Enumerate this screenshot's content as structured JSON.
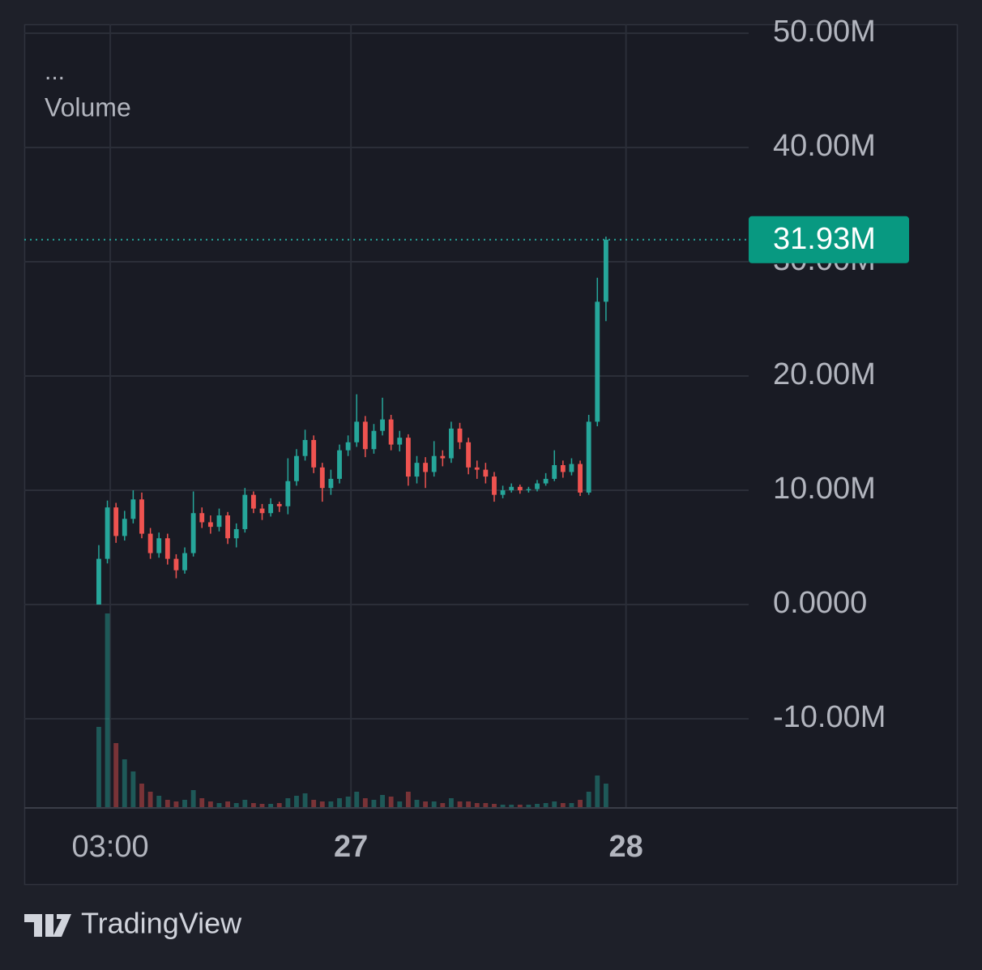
{
  "chart_data": {
    "type": "candlestick",
    "legend_dots": "...",
    "series_name": "Volume",
    "brand": "TradingView",
    "up_color": "#26a69a",
    "down_color": "#ef5350",
    "grid": true,
    "xlim": [
      -4.5,
      58.7
    ],
    "xticks": [
      {
        "value": 3,
        "label": "03:00",
        "bold": false
      },
      {
        "value": 24,
        "label": "27",
        "bold": true
      },
      {
        "value": 48,
        "label": "28",
        "bold": true
      }
    ],
    "ylim": [
      -17.8,
      50.78
    ],
    "yticks": [
      {
        "value": -10,
        "label": "-10.00M"
      },
      {
        "value": 0,
        "label": "0.0000"
      },
      {
        "value": 10,
        "label": "10.00M"
      },
      {
        "value": 20,
        "label": "20.00M"
      },
      {
        "value": 30,
        "label": "30.00M"
      },
      {
        "value": 40,
        "label": "40.00M"
      },
      {
        "value": 50,
        "label": "50.00M"
      }
    ],
    "last_price": {
      "value": 31.93,
      "label": "31.93M"
    },
    "candles": {
      "x": [
        2,
        2.75,
        3.5,
        4.25,
        5,
        5.75,
        6.5,
        7.25,
        8,
        8.75,
        9.5,
        10.25,
        11,
        11.75,
        12.5,
        13.25,
        14,
        14.75,
        15.5,
        16.25,
        17,
        17.75,
        18.5,
        19.25,
        20,
        20.75,
        21.5,
        22.25,
        23,
        23.75,
        24.5,
        25.25,
        26,
        26.75,
        27.5,
        28.25,
        29,
        29.75,
        30.5,
        31.25,
        32,
        32.75,
        33.5,
        34.25,
        35,
        35.75,
        36.5,
        37.25,
        38,
        38.75,
        39.5,
        40.25,
        41,
        41.75,
        42.5,
        43.25,
        44,
        44.75,
        45.5,
        46.25
      ],
      "open": [
        0,
        4.0,
        8.5,
        6.0,
        7.5,
        9.2,
        6.2,
        4.5,
        5.8,
        4.0,
        3.0,
        4.5,
        8.0,
        7.2,
        6.8,
        7.8,
        5.8,
        6.6,
        9.6,
        8.4,
        8.0,
        8.8,
        8.6,
        10.8,
        13.0,
        14.4,
        12.0,
        10.2,
        11.0,
        13.5,
        14.2,
        16.0,
        13.6,
        15.2,
        16.2,
        14.0,
        14.6,
        11.2,
        12.4,
        11.6,
        13.0,
        12.8,
        15.4,
        14.2,
        12.0,
        11.8,
        11.2,
        9.6,
        10.0,
        10.3,
        10.0,
        10.1,
        10.6,
        11.0,
        12.2,
        11.6,
        12.3,
        9.8,
        16.0,
        26.5
      ],
      "high": [
        5.2,
        9.1,
        8.9,
        8.2,
        10.0,
        9.8,
        6.7,
        6.3,
        6.2,
        4.4,
        5.0,
        9.9,
        8.5,
        7.8,
        8.4,
        8.1,
        7.1,
        10.2,
        9.9,
        8.8,
        9.3,
        9.0,
        12.8,
        13.6,
        15.3,
        14.8,
        12.4,
        11.8,
        14.0,
        14.8,
        18.4,
        16.5,
        15.8,
        18.1,
        16.6,
        15.2,
        14.9,
        13.0,
        12.9,
        14.3,
        13.5,
        16.0,
        15.9,
        14.6,
        12.6,
        12.4,
        11.6,
        10.4,
        10.6,
        10.5,
        10.3,
        10.9,
        11.5,
        13.5,
        12.6,
        12.8,
        12.6,
        16.6,
        28.6,
        32.2
      ],
      "low": [
        0,
        3.6,
        5.4,
        5.6,
        7.1,
        5.8,
        4.0,
        4.1,
        3.5,
        2.3,
        2.7,
        4.2,
        6.7,
        6.2,
        6.4,
        5.3,
        5.0,
        6.3,
        8.0,
        7.4,
        7.7,
        8.1,
        7.9,
        10.4,
        12.6,
        11.5,
        9.0,
        9.6,
        10.6,
        13.0,
        13.8,
        12.9,
        13.2,
        14.8,
        13.5,
        13.4,
        10.4,
        10.6,
        10.2,
        11.2,
        12.1,
        12.4,
        13.6,
        11.4,
        11.0,
        10.6,
        9.0,
        9.3,
        9.8,
        9.7,
        9.8,
        9.9,
        10.4,
        10.8,
        11.1,
        11.3,
        9.5,
        9.6,
        15.6,
        24.8
      ],
      "close": [
        4.0,
        8.5,
        6.0,
        7.5,
        9.2,
        6.2,
        4.5,
        5.8,
        4.0,
        3.0,
        4.5,
        8.0,
        7.2,
        6.8,
        7.8,
        5.8,
        6.6,
        9.6,
        8.4,
        8.0,
        8.8,
        8.6,
        10.8,
        13.0,
        14.4,
        12.0,
        10.2,
        11.0,
        13.5,
        14.2,
        16.0,
        13.6,
        15.2,
        16.2,
        14.0,
        14.6,
        11.2,
        12.4,
        11.6,
        13.0,
        12.8,
        15.4,
        14.2,
        12.0,
        11.8,
        11.2,
        9.6,
        10.0,
        10.3,
        10.0,
        10.1,
        10.6,
        11.0,
        12.2,
        11.6,
        12.3,
        9.8,
        16.0,
        26.5,
        31.93
      ],
      "volume": [
        100,
        240,
        80,
        60,
        45,
        30,
        20,
        15,
        10,
        8,
        10,
        22,
        12,
        8,
        6,
        8,
        6,
        10,
        6,
        5,
        5,
        6,
        12,
        15,
        18,
        10,
        8,
        8,
        12,
        14,
        20,
        12,
        10,
        16,
        14,
        8,
        20,
        10,
        8,
        8,
        6,
        12,
        8,
        8,
        6,
        6,
        5,
        4,
        4,
        4,
        4,
        5,
        6,
        8,
        6,
        6,
        10,
        20,
        40,
        30
      ]
    }
  }
}
